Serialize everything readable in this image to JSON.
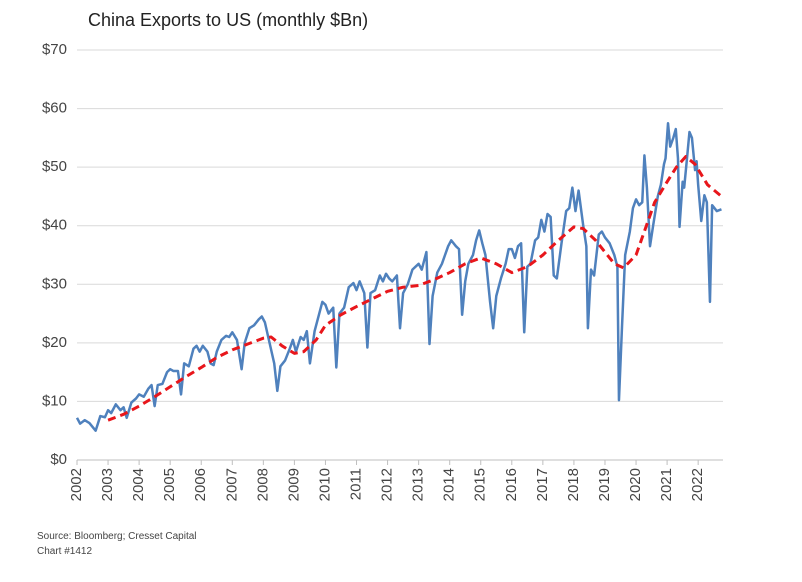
{
  "chart_data": {
    "type": "line",
    "title": "China Exports to US (monthly $Bn)",
    "notes": [
      "Source: Bloomberg; Cresset Capital",
      "Chart #1412"
    ],
    "xlim": [
      2002,
      2022.8
    ],
    "xticks": [
      2002,
      2003,
      2004,
      2005,
      2006,
      2007,
      2008,
      2009,
      2010,
      2011,
      2012,
      2013,
      2014,
      2015,
      2016,
      2017,
      2018,
      2019,
      2020,
      2021,
      2022
    ],
    "ylim": [
      0,
      70
    ],
    "yticks": [
      {
        "value": 0,
        "label": "$0"
      },
      {
        "value": 10,
        "label": "$10"
      },
      {
        "value": 20,
        "label": "$20"
      },
      {
        "value": 30,
        "label": "$30"
      },
      {
        "value": 40,
        "label": "$40"
      },
      {
        "value": 50,
        "label": "$50"
      },
      {
        "value": 60,
        "label": "$60"
      },
      {
        "value": 70,
        "label": "$70"
      }
    ],
    "grid": true,
    "series": [
      {
        "color": "#4f81bd",
        "dashed": false,
        "x": [
          2002.0,
          2002.1,
          2002.25,
          2002.4,
          2002.6,
          2002.75,
          2002.9,
          2003.0,
          2003.1,
          2003.25,
          2003.4,
          2003.5,
          2003.6,
          2003.75,
          2003.9,
          2004.0,
          2004.15,
          2004.3,
          2004.4,
          2004.5,
          2004.6,
          2004.75,
          2004.9,
          2005.0,
          2005.1,
          2005.25,
          2005.35,
          2005.45,
          2005.6,
          2005.75,
          2005.85,
          2005.95,
          2006.05,
          2006.2,
          2006.3,
          2006.4,
          2006.5,
          2006.65,
          2006.8,
          2006.9,
          2007.0,
          2007.15,
          2007.3,
          2007.4,
          2007.55,
          2007.7,
          2007.85,
          2007.95,
          2008.05,
          2008.2,
          2008.35,
          2008.45,
          2008.55,
          2008.7,
          2008.85,
          2008.95,
          2009.05,
          2009.2,
          2009.3,
          2009.4,
          2009.5,
          2009.65,
          2009.8,
          2009.9,
          2010.0,
          2010.1,
          2010.25,
          2010.35,
          2010.45,
          2010.6,
          2010.75,
          2010.9,
          2011.0,
          2011.1,
          2011.25,
          2011.35,
          2011.45,
          2011.6,
          2011.75,
          2011.85,
          2011.95,
          2012.05,
          2012.15,
          2012.3,
          2012.4,
          2012.5,
          2012.65,
          2012.8,
          2012.9,
          2013.0,
          2013.1,
          2013.25,
          2013.35,
          2013.45,
          2013.6,
          2013.75,
          2013.85,
          2013.95,
          2014.05,
          2014.2,
          2014.3,
          2014.4,
          2014.5,
          2014.6,
          2014.75,
          2014.85,
          2014.95,
          2015.05,
          2015.15,
          2015.3,
          2015.4,
          2015.5,
          2015.65,
          2015.8,
          2015.9,
          2016.0,
          2016.1,
          2016.2,
          2016.3,
          2016.4,
          2016.5,
          2016.6,
          2016.75,
          2016.85,
          2016.95,
          2017.05,
          2017.15,
          2017.25,
          2017.35,
          2017.45,
          2017.6,
          2017.75,
          2017.85,
          2017.95,
          2018.05,
          2018.15,
          2018.3,
          2018.4,
          2018.45,
          2018.55,
          2018.65,
          2018.8,
          2018.9,
          2019.0,
          2019.15,
          2019.3,
          2019.4,
          2019.45,
          2019.55,
          2019.65,
          2019.8,
          2019.9,
          2020.0,
          2020.1,
          2020.2,
          2020.27,
          2020.35,
          2020.45,
          2020.55,
          2020.7,
          2020.8,
          2020.9,
          2020.95,
          2021.03,
          2021.1,
          2021.2,
          2021.28,
          2021.35,
          2021.4,
          2021.5,
          2021.55,
          2021.65,
          2021.72,
          2021.8,
          2021.9,
          2021.95,
          2022.0,
          2022.1,
          2022.2,
          2022.28,
          2022.38,
          2022.45,
          2022.6,
          2022.75
        ],
        "values": [
          7.2,
          6.2,
          6.8,
          6.3,
          5.0,
          7.5,
          7.3,
          8.5,
          8.0,
          9.5,
          8.5,
          9.0,
          7.2,
          9.8,
          10.5,
          11.2,
          10.8,
          12.2,
          12.8,
          9.2,
          12.8,
          13.0,
          15.0,
          15.5,
          15.2,
          15.2,
          11.2,
          16.5,
          16.0,
          19.0,
          19.5,
          18.5,
          19.5,
          18.5,
          16.5,
          16.2,
          18.5,
          20.5,
          21.2,
          21.0,
          21.8,
          20.5,
          15.5,
          20.0,
          22.5,
          23.0,
          24.0,
          24.5,
          23.5,
          20.0,
          16.5,
          11.8,
          16.0,
          17.0,
          19.0,
          20.5,
          18.5,
          21.0,
          20.5,
          22.0,
          16.5,
          22.0,
          25.0,
          27.0,
          26.5,
          25.0,
          26.0,
          15.8,
          25.0,
          26.0,
          29.5,
          30.2,
          29.0,
          30.5,
          28.5,
          19.2,
          28.5,
          29.0,
          31.5,
          30.5,
          31.8,
          31.0,
          30.5,
          31.5,
          22.5,
          28.5,
          30.0,
          32.5,
          33.0,
          33.5,
          32.5,
          35.5,
          19.8,
          28.0,
          32.0,
          33.5,
          35.0,
          36.5,
          37.5,
          36.5,
          36.0,
          24.8,
          30.5,
          33.5,
          35.0,
          37.5,
          39.2,
          37.0,
          35.0,
          27.0,
          22.5,
          28.0,
          31.0,
          33.5,
          36.0,
          36.0,
          34.5,
          36.5,
          37.0,
          21.8,
          33.0,
          33.5,
          37.5,
          38.0,
          41.0,
          39.0,
          42.0,
          41.5,
          31.5,
          31.0,
          37.0,
          42.5,
          43.0,
          46.5,
          42.5,
          46.0,
          40.0,
          36.5,
          22.5,
          32.5,
          31.5,
          38.5,
          39.0,
          38.0,
          37.0,
          35.0,
          33.0,
          10.2,
          23.0,
          35.0,
          39.0,
          43.0,
          44.5,
          43.5,
          44.0,
          52.0,
          46.5,
          36.5,
          40.0,
          45.0,
          47.0,
          50.5,
          51.5,
          57.5,
          53.5,
          55.0,
          56.5,
          51.5,
          39.8,
          47.5,
          46.5,
          52.0,
          56.0,
          55.0,
          49.5,
          51.0,
          47.0,
          40.8,
          45.2,
          44.0,
          27.0,
          43.5,
          42.5,
          42.8
        ]
      },
      {
        "color": "#e8161b",
        "dashed": true,
        "x": [
          2003.0,
          2003.5,
          2004.0,
          2004.5,
          2005.0,
          2005.5,
          2006.0,
          2006.5,
          2007.0,
          2007.5,
          2008.0,
          2008.25,
          2008.6,
          2009.0,
          2009.3,
          2009.7,
          2010.0,
          2010.5,
          2011.0,
          2011.5,
          2012.0,
          2012.5,
          2013.0,
          2013.5,
          2014.0,
          2014.5,
          2015.0,
          2015.5,
          2016.0,
          2016.5,
          2017.0,
          2017.5,
          2018.0,
          2018.3,
          2018.7,
          2019.0,
          2019.3,
          2019.6,
          2020.0,
          2020.3,
          2020.6,
          2021.0,
          2021.3,
          2021.6,
          2021.9,
          2022.3,
          2022.8
        ],
        "values": [
          6.8,
          7.8,
          9.2,
          10.8,
          12.5,
          14.2,
          15.8,
          17.5,
          18.8,
          19.8,
          20.8,
          21.0,
          19.5,
          18.2,
          18.5,
          20.5,
          23.0,
          24.8,
          26.2,
          27.5,
          28.8,
          29.5,
          29.8,
          30.8,
          32.0,
          33.5,
          34.5,
          33.5,
          32.0,
          33.0,
          35.0,
          37.5,
          39.8,
          39.5,
          37.5,
          35.5,
          33.5,
          32.8,
          35.0,
          39.5,
          44.0,
          47.5,
          50.0,
          51.8,
          50.5,
          47.0,
          44.8
        ]
      }
    ]
  }
}
